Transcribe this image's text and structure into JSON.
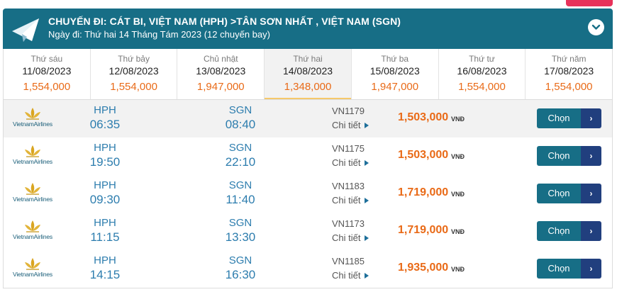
{
  "header": {
    "route": "CHUYẾN ĐI: CÁT BI, VIỆT NAM (HPH) >TÂN SƠN NHẤT , VIỆT NAM (SGN)",
    "date_line": "Ngày đi: Thứ hai 14 Tháng Tám 2023 (12 chuyến bay)",
    "plane_icon": "paper-plane-icon",
    "toggle_icon": "chevron-down-icon"
  },
  "days": [
    {
      "name": "Thứ sáu",
      "date": "11/08/2023",
      "price": "1,554,000"
    },
    {
      "name": "Thứ bảy",
      "date": "12/08/2023",
      "price": "1,554,000"
    },
    {
      "name": "Chủ nhật",
      "date": "13/08/2023",
      "price": "1,947,000"
    },
    {
      "name": "Thứ hai",
      "date": "14/08/2023",
      "price": "1,348,000"
    },
    {
      "name": "Thứ ba",
      "date": "15/08/2023",
      "price": "1,947,000"
    },
    {
      "name": "Thứ tư",
      "date": "16/08/2023",
      "price": "1,554,000"
    },
    {
      "name": "Thứ năm",
      "date": "17/08/2023",
      "price": "1,554,000"
    }
  ],
  "selected_day": "14/08/2023",
  "airline": "VietnamAirlines",
  "currency": "VNĐ",
  "detail_label": "Chi tiết",
  "choose_label": "Chọn",
  "choose_arrow": "›",
  "flights": [
    {
      "from": "HPH",
      "dep": "06:35",
      "to": "SGN",
      "arr": "08:40",
      "flight_no": "VN1179",
      "price": "1,503,000"
    },
    {
      "from": "HPH",
      "dep": "19:50",
      "to": "SGN",
      "arr": "22:10",
      "flight_no": "VN1175",
      "price": "1,503,000"
    },
    {
      "from": "HPH",
      "dep": "09:30",
      "to": "SGN",
      "arr": "11:40",
      "flight_no": "VN1183",
      "price": "1,719,000"
    },
    {
      "from": "HPH",
      "dep": "11:15",
      "to": "SGN",
      "arr": "13:30",
      "flight_no": "VN1173",
      "price": "1,719,000"
    },
    {
      "from": "HPH",
      "dep": "14:15",
      "to": "SGN",
      "arr": "16:30",
      "flight_no": "VN1185",
      "price": "1,935,000"
    }
  ],
  "colors": {
    "header_bg": "#176e86",
    "price_orange": "#e96a17",
    "time_blue": "#2d7dae",
    "button_teal": "#176e86",
    "button_navy": "#213f7e",
    "corner_tab": "#e8325a"
  }
}
